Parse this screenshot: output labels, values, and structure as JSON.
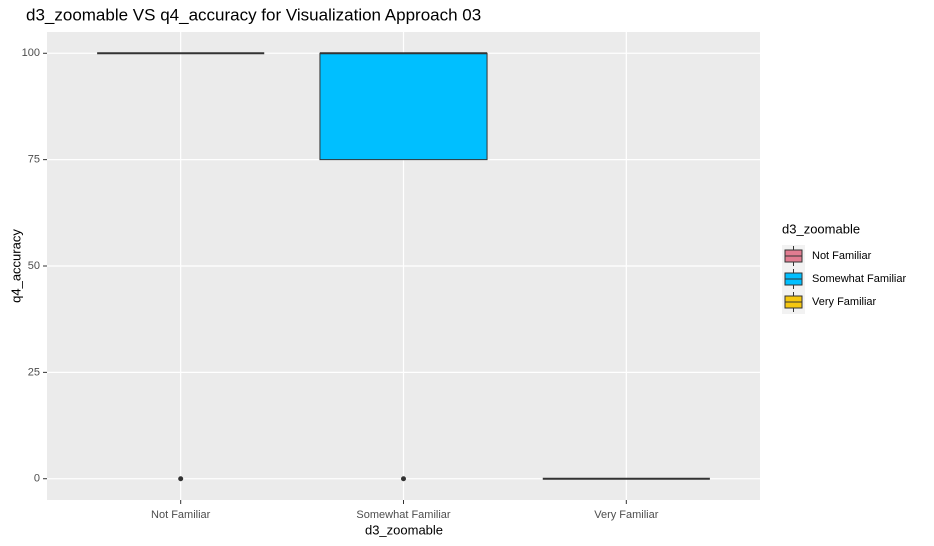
{
  "chart_data": {
    "type": "boxplot",
    "title": "d3_zoomable VS q4_accuracy for Visualization Approach 03",
    "x_label": "d3_zoomable",
    "y_label": "q4_accuracy",
    "categories": [
      "Not Familiar",
      "Somewhat Familiar",
      "Very Familiar"
    ],
    "boxes": [
      {
        "min": 100,
        "q1": 100,
        "median": 100,
        "q3": 100,
        "max": 100,
        "outliers": [
          0
        ]
      },
      {
        "min": 75,
        "q1": 75,
        "median": 100,
        "q3": 100,
        "max": 100,
        "outliers": [
          0
        ]
      },
      {
        "min": 0,
        "q1": 0,
        "median": 0,
        "q3": 0,
        "max": 0,
        "outliers": []
      }
    ],
    "colors": [
      "#e27c91",
      "#00bfff",
      "#f5c710"
    ],
    "legend_title": "d3_zoomable",
    "ylim": [
      -5,
      105
    ],
    "yticks": [
      0,
      25,
      50,
      75,
      100
    ],
    "grid": true
  }
}
